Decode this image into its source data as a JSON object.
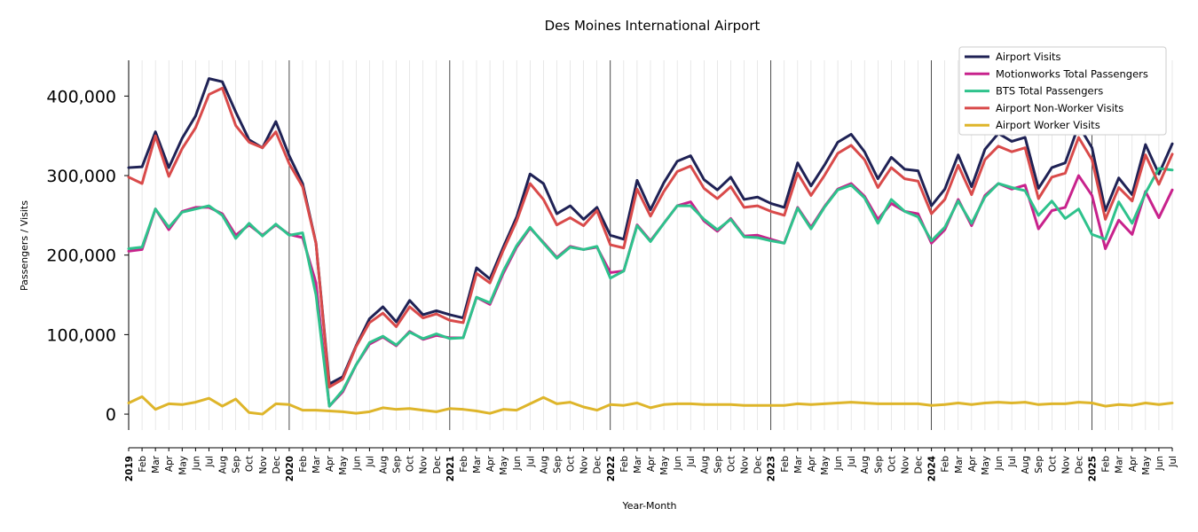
{
  "chart_data": {
    "type": "line",
    "title": "Des Moines International Airport",
    "xlabel": "Year-Month",
    "ylabel": "Passengers / Visits",
    "ylim": [
      -20000,
      445000
    ],
    "yticks": [
      0,
      100000,
      200000,
      300000,
      400000
    ],
    "ytick_labels": [
      "0",
      "100,000",
      "200,000",
      "300,000",
      "400,000"
    ],
    "grid": "vertical",
    "legend_position": "top-right",
    "month_labels": [
      "Feb",
      "Mar",
      "Apr",
      "May",
      "Jun",
      "Jul",
      "Aug",
      "Sep",
      "Oct",
      "Nov",
      "Dec"
    ],
    "x": [
      "2019",
      "Feb",
      "Mar",
      "Apr",
      "May",
      "Jun",
      "Jul",
      "Aug",
      "Sep",
      "Oct",
      "Nov",
      "Dec",
      "2020",
      "Feb",
      "Mar",
      "Apr",
      "May",
      "Jun",
      "Jul",
      "Aug",
      "Sep",
      "Oct",
      "Nov",
      "Dec",
      "2021",
      "Feb",
      "Mar",
      "Apr",
      "May",
      "Jun",
      "Jul",
      "Aug",
      "Sep",
      "Oct",
      "Nov",
      "Dec",
      "2022",
      "Feb",
      "Mar",
      "Apr",
      "May",
      "Jun",
      "Jul",
      "Aug",
      "Sep",
      "Oct",
      "Nov",
      "Dec",
      "2023",
      "Feb",
      "Mar",
      "Apr",
      "May",
      "Jun",
      "Jul",
      "Aug",
      "Sep",
      "Oct",
      "Nov",
      "Dec",
      "2024",
      "Feb",
      "Mar",
      "Apr",
      "May",
      "Jun",
      "Jul",
      "Aug",
      "Sep",
      "Oct",
      "Nov",
      "Dec",
      "2025",
      "Feb",
      "Mar",
      "Apr",
      "May",
      "Jun",
      "Jul"
    ],
    "series": [
      {
        "name": "Airport Visits",
        "color": "#1f2255",
        "values": [
          310000,
          311000,
          355000,
          310000,
          347000,
          375000,
          422000,
          418000,
          380000,
          345000,
          335000,
          368000,
          325000,
          290000,
          215000,
          38000,
          47000,
          86000,
          120000,
          135000,
          116000,
          143000,
          125000,
          130000,
          125000,
          121000,
          184000,
          170000,
          210000,
          248000,
          302000,
          290000,
          252000,
          262000,
          245000,
          260000,
          225000,
          220000,
          294000,
          257000,
          291000,
          318000,
          325000,
          295000,
          282000,
          298000,
          270000,
          273000,
          265000,
          260000,
          316000,
          287000,
          313000,
          342000,
          352000,
          330000,
          296000,
          323000,
          308000,
          306000,
          262000,
          283000,
          326000,
          286000,
          333000,
          353000,
          343000,
          348000,
          284000,
          310000,
          316000,
          363000,
          335000,
          256000,
          297000,
          276000,
          339000,
          302000,
          340000
        ]
      },
      {
        "name": "Motionworks Total Passengers",
        "color": "#c8228c",
        "values": [
          205000,
          207000,
          258000,
          232000,
          255000,
          260000,
          260000,
          252000,
          225000,
          238000,
          225000,
          238000,
          226000,
          222000,
          165000,
          10000,
          28000,
          62000,
          88000,
          97000,
          86000,
          104000,
          94000,
          99000,
          96000,
          96000,
          147000,
          138000,
          177000,
          210000,
          234000,
          216000,
          197000,
          211000,
          207000,
          210000,
          178000,
          180000,
          238000,
          218000,
          240000,
          262000,
          267000,
          243000,
          230000,
          246000,
          224000,
          225000,
          220000,
          215000,
          260000,
          235000,
          261000,
          283000,
          290000,
          274000,
          245000,
          265000,
          255000,
          252000,
          215000,
          232000,
          270000,
          237000,
          275000,
          290000,
          283000,
          288000,
          233000,
          256000,
          260000,
          300000,
          275000,
          208000,
          244000,
          226000,
          280000,
          247000,
          282000
        ]
      },
      {
        "name": "BTS Total Passengers",
        "color": "#2ec28c",
        "values": [
          208000,
          210000,
          258000,
          235000,
          254000,
          258000,
          262000,
          250000,
          221000,
          240000,
          224000,
          239000,
          225000,
          228000,
          150000,
          10000,
          30000,
          62000,
          90000,
          98000,
          87000,
          103000,
          95000,
          101000,
          95000,
          96000,
          147000,
          140000,
          180000,
          212000,
          235000,
          215000,
          196000,
          210000,
          207000,
          211000,
          171000,
          180000,
          237000,
          217000,
          240000,
          262000,
          262000,
          245000,
          232000,
          245000,
          223000,
          222000,
          218000,
          215000,
          259000,
          233000,
          260000,
          282000,
          288000,
          272000,
          240000,
          270000,
          255000,
          248000,
          218000,
          235000,
          268000,
          240000,
          273000,
          290000,
          285000,
          281000,
          250000,
          268000,
          246000,
          258000,
          226000,
          220000,
          267000,
          240000,
          278000,
          309000,
          307000
        ]
      },
      {
        "name": "Airport Non-Worker Visits",
        "color": "#d94a4a",
        "values": [
          298000,
          290000,
          350000,
          299000,
          334000,
          360000,
          402000,
          410000,
          363000,
          342000,
          335000,
          355000,
          315000,
          286000,
          215000,
          34000,
          44000,
          85000,
          115000,
          127000,
          110000,
          135000,
          121000,
          126000,
          118000,
          115000,
          177000,
          165000,
          206000,
          243000,
          290000,
          270000,
          238000,
          247000,
          237000,
          256000,
          213000,
          209000,
          283000,
          249000,
          280000,
          305000,
          312000,
          284000,
          271000,
          286000,
          260000,
          262000,
          255000,
          250000,
          303000,
          275000,
          300000,
          328000,
          338000,
          320000,
          285000,
          310000,
          296000,
          293000,
          252000,
          270000,
          313000,
          276000,
          320000,
          337000,
          330000,
          335000,
          271000,
          298000,
          303000,
          348000,
          320000,
          245000,
          285000,
          268000,
          326000,
          289000,
          327000
        ]
      },
      {
        "name": "Airport Worker Visits",
        "color": "#deb52a",
        "values": [
          14000,
          22000,
          6000,
          13000,
          12000,
          15000,
          20000,
          10000,
          19000,
          2000,
          0,
          13000,
          12000,
          5000,
          5000,
          4000,
          3000,
          1000,
          3000,
          8000,
          6000,
          7000,
          5000,
          3000,
          7000,
          6000,
          4000,
          1000,
          6000,
          5000,
          13000,
          21000,
          13000,
          15000,
          9000,
          5000,
          12000,
          11000,
          14000,
          8000,
          12000,
          13000,
          13000,
          12000,
          12000,
          12000,
          11000,
          11000,
          11000,
          11000,
          13000,
          12000,
          13000,
          14000,
          15000,
          14000,
          13000,
          13000,
          13000,
          13000,
          11000,
          12000,
          14000,
          12000,
          14000,
          15000,
          14000,
          15000,
          12000,
          13000,
          13000,
          15000,
          14000,
          10000,
          12000,
          11000,
          14000,
          12000,
          14000
        ]
      }
    ]
  }
}
